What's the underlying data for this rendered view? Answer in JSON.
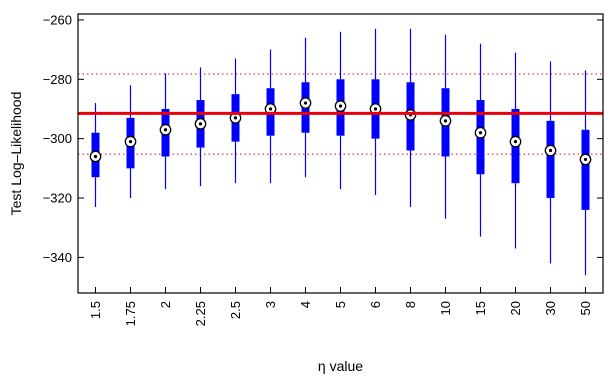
{
  "chart_data": {
    "type": "box",
    "xlabel": "η value",
    "ylabel": "Test Log–Likelihood",
    "ylim": [
      -352,
      -258
    ],
    "yticks": [
      -340,
      -320,
      -300,
      -280,
      -260
    ],
    "yticklabels": [
      "−340",
      "−320",
      "−300",
      "−280",
      "−260"
    ],
    "categories": [
      "1.5",
      "1.75",
      "2",
      "2.25",
      "2.5",
      "3",
      "4",
      "5",
      "6",
      "8",
      "10",
      "15",
      "20",
      "30",
      "50"
    ],
    "boxes": [
      {
        "min": -323,
        "q1": -313,
        "median": -306,
        "q3": -298,
        "max": -288
      },
      {
        "min": -320,
        "q1": -310,
        "median": -301,
        "q3": -293,
        "max": -282
      },
      {
        "min": -317,
        "q1": -306,
        "median": -297,
        "q3": -290,
        "max": -278
      },
      {
        "min": -316,
        "q1": -303,
        "median": -295,
        "q3": -287,
        "max": -276
      },
      {
        "min": -315,
        "q1": -301,
        "median": -293,
        "q3": -285,
        "max": -273
      },
      {
        "min": -315,
        "q1": -299,
        "median": -290,
        "q3": -283,
        "max": -270
      },
      {
        "min": -313,
        "q1": -298,
        "median": -288,
        "q3": -281,
        "max": -266
      },
      {
        "min": -317,
        "q1": -299,
        "median": -289,
        "q3": -280,
        "max": -264
      },
      {
        "min": -319,
        "q1": -300,
        "median": -290,
        "q3": -280,
        "max": -263
      },
      {
        "min": -323,
        "q1": -304,
        "median": -292,
        "q3": -281,
        "max": -263
      },
      {
        "min": -327,
        "q1": -306,
        "median": -294,
        "q3": -283,
        "max": -265
      },
      {
        "min": -333,
        "q1": -312,
        "median": -298,
        "q3": -287,
        "max": -268
      },
      {
        "min": -337,
        "q1": -315,
        "median": -301,
        "q3": -290,
        "max": -271
      },
      {
        "min": -342,
        "q1": -320,
        "median": -304,
        "q3": -294,
        "max": -274
      },
      {
        "min": -346,
        "q1": -324,
        "median": -307,
        "q3": -297,
        "max": -277
      }
    ],
    "reference_line": {
      "value": -291.5,
      "color": "#e8000b"
    },
    "reference_band": {
      "lower": -305.2,
      "upper": -278.2,
      "color": "#e8000b",
      "style": "dotted"
    },
    "box_color": "#0000ff",
    "grid": false
  }
}
